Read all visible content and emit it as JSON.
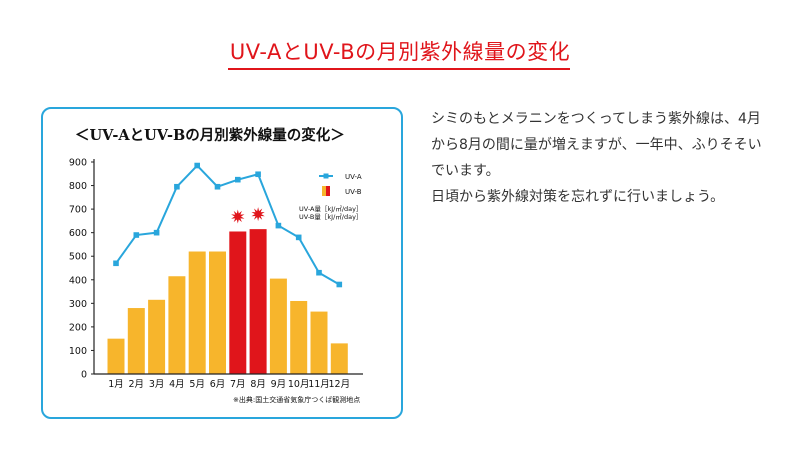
{
  "page": {
    "title": "UV-AとUV-Bの月別紫外線量の変化"
  },
  "description": {
    "paragraph1": "シミのもとメラニンをつくってしまう紫外線は、4月から8月の間に量が増えますが、一年中、ふりそそいでいます。",
    "paragraph2": "日頃から紫外線対策を忘れずに行いましょう。"
  },
  "colors": {
    "accent_red": "#e0151b",
    "card_border": "#29a6dc",
    "uva_line": "#29a6dc",
    "uvb_bar": "#f7b52c",
    "uvb_bar_highlight": "#e0151b"
  },
  "chart_data": {
    "type": "bar",
    "title": "＜UV-AとUV-Bの月別紫外線量の変化＞",
    "categories": [
      "1月",
      "2月",
      "3月",
      "4月",
      "5月",
      "6月",
      "7月",
      "8月",
      "9月",
      "10月",
      "11月",
      "12月"
    ],
    "ylim": [
      0,
      900
    ],
    "yticks": [
      0,
      100,
      200,
      300,
      400,
      500,
      600,
      700,
      800,
      900
    ],
    "series": [
      {
        "name": "UV-A",
        "type": "line",
        "color": "#29a6dc",
        "values": [
          470,
          590,
          600,
          795,
          885,
          795,
          825,
          848,
          630,
          580,
          430,
          380
        ]
      },
      {
        "name": "UV-B",
        "type": "bar",
        "color": "#f7b52c",
        "highlight_color": "#e0151b",
        "highlight_indices": [
          6,
          7
        ],
        "values": [
          150,
          280,
          315,
          415,
          520,
          520,
          605,
          615,
          405,
          310,
          265,
          130
        ]
      }
    ],
    "units": [
      "UV-A量［kJ/㎡/day］",
      "UV-B量［kJ/㎡/day］"
    ],
    "legend_position": "top-right",
    "annotation": "※出典:国土交通省気象庁つくば観測地点",
    "grid": false
  }
}
